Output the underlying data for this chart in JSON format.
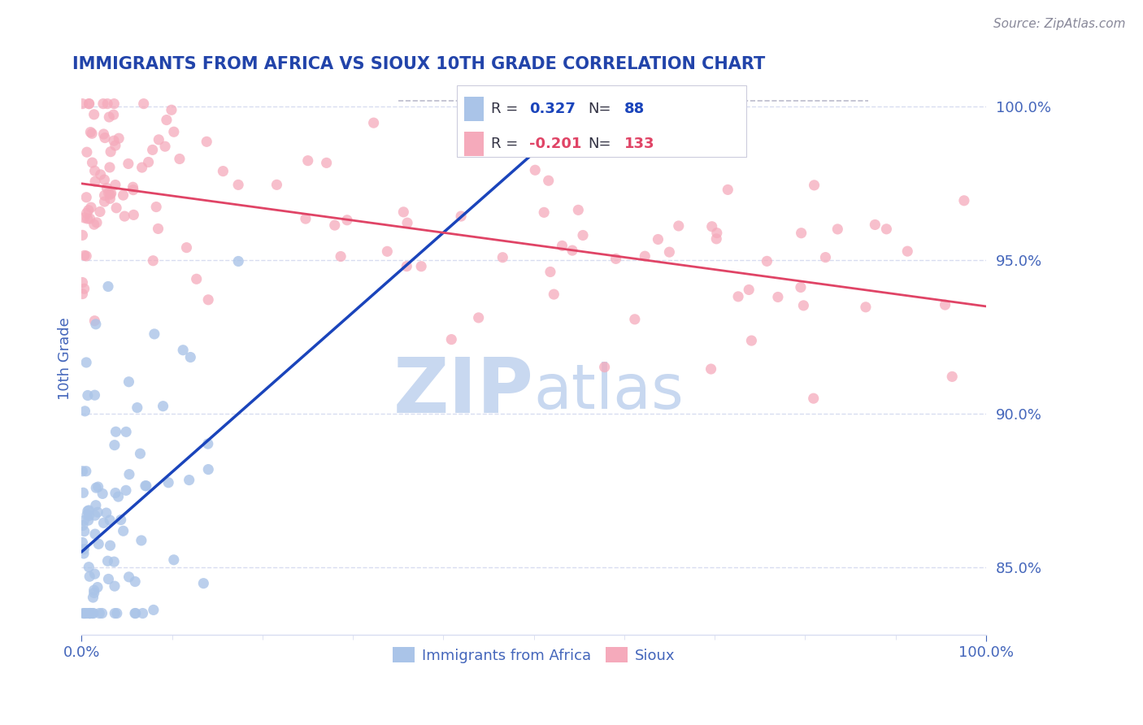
{
  "title": "IMMIGRANTS FROM AFRICA VS SIOUX 10TH GRADE CORRELATION CHART",
  "source_text": "Source: ZipAtlas.com",
  "ylabel": "10th Grade",
  "xlim": [
    0.0,
    1.0
  ],
  "ylim": [
    0.828,
    1.008
  ],
  "xticks": [
    0.0,
    1.0
  ],
  "xticklabels": [
    "0.0%",
    "100.0%"
  ],
  "yticks": [
    0.85,
    0.9,
    0.95,
    1.0
  ],
  "yticklabels": [
    "85.0%",
    "90.0%",
    "95.0%",
    "100.0%"
  ],
  "blue_R": 0.327,
  "blue_N": 88,
  "pink_R": -0.201,
  "pink_N": 133,
  "blue_color": "#aac4e8",
  "pink_color": "#f5aabb",
  "blue_line_color": "#1a44bb",
  "pink_line_color": "#e04466",
  "title_color": "#2244aa",
  "tick_color": "#4466bb",
  "grid_color": "#d8ddf0",
  "watermark_color": "#c8d8f0",
  "background_color": "#ffffff",
  "legend_label_blue": "Immigrants from Africa",
  "legend_label_pink": "Sioux",
  "blue_trend_x0": 0.0,
  "blue_trend_y0": 0.855,
  "blue_trend_x1": 0.5,
  "blue_trend_y1": 0.985,
  "pink_trend_x0": 0.0,
  "pink_trend_y0": 0.975,
  "pink_trend_x1": 1.0,
  "pink_trend_y1": 0.935
}
